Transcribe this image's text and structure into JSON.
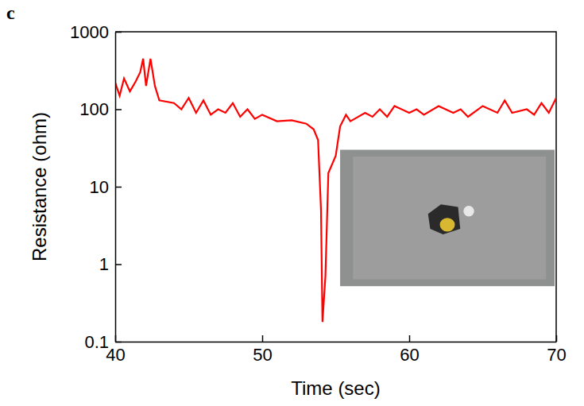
{
  "chart_data": {
    "type": "line",
    "panel_label": "c",
    "x_label": "Time (sec)",
    "y_label": "Resistance (ohm)",
    "log": "y",
    "color": "#ff0000",
    "xlim": [
      40,
      70
    ],
    "xticks": [
      40,
      50,
      60,
      70
    ],
    "ylim": [
      0.1,
      1000
    ],
    "yticks": [
      0.1,
      1,
      10,
      100,
      1000
    ],
    "x": [
      40,
      40.3,
      40.6,
      41,
      41.4,
      41.7,
      41.9,
      42.1,
      42.4,
      42.7,
      43,
      44,
      44.5,
      45,
      45.5,
      46,
      46.5,
      47,
      47.5,
      48,
      48.5,
      49,
      49.5,
      50,
      51,
      52,
      53,
      53.5,
      53.8,
      54,
      54.1,
      54.3,
      54.5,
      55,
      55.3,
      55.7,
      56,
      57,
      57.5,
      58,
      58.5,
      59,
      60,
      60.5,
      61,
      62,
      63,
      63.5,
      64,
      65,
      66,
      66.5,
      67,
      68,
      68.5,
      69,
      69.5,
      70
    ],
    "values": [
      220,
      150,
      250,
      170,
      230,
      300,
      450,
      200,
      450,
      200,
      130,
      120,
      100,
      140,
      90,
      130,
      85,
      100,
      90,
      120,
      80,
      100,
      75,
      85,
      70,
      72,
      65,
      55,
      40,
      5,
      0.18,
      0.7,
      15,
      25,
      60,
      85,
      70,
      90,
      80,
      100,
      80,
      110,
      90,
      100,
      85,
      110,
      90,
      100,
      80,
      110,
      90,
      130,
      90,
      100,
      85,
      120,
      90,
      140
    ]
  }
}
